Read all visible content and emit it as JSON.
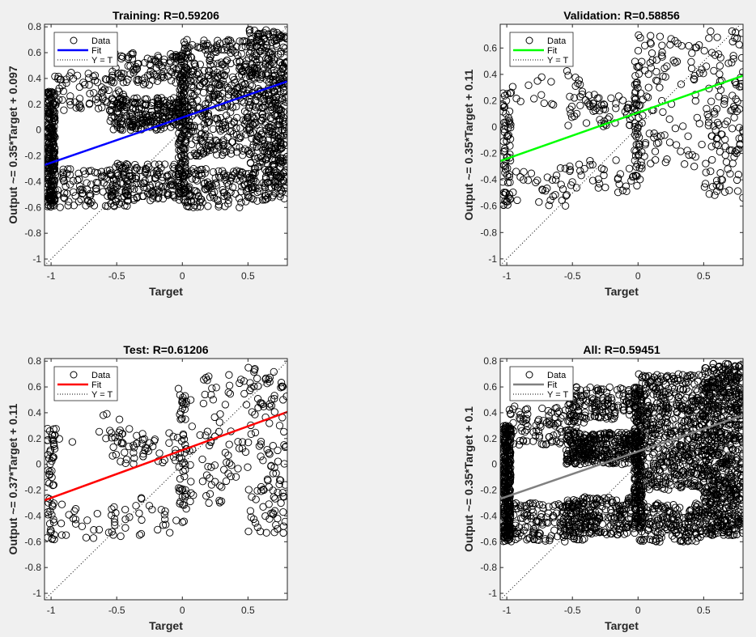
{
  "chart_data": [
    {
      "type": "scatter",
      "title": "Training: R=0.59206",
      "xlabel": "Target",
      "ylabel": "Output ~= 0.35*Target + 0.097",
      "xlim": [
        -1.05,
        0.8
      ],
      "ylim": [
        -1.05,
        0.82
      ],
      "xticks": [
        -1,
        -0.5,
        0,
        0.5
      ],
      "xtick_labels": [
        "-1",
        "-0.5",
        "0",
        "0.5"
      ],
      "yticks": [
        -1,
        -0.8,
        -0.6,
        -0.4,
        -0.2,
        0,
        0.2,
        0.4,
        0.6,
        0.8
      ],
      "ytick_labels": [
        "-1",
        "-0.8",
        "-0.6",
        "-0.4",
        "-0.2",
        "0",
        "0.2",
        "0.4",
        "0.6",
        "0.8"
      ],
      "fit": {
        "slope": 0.35,
        "intercept": 0.097,
        "color": "#0000ff"
      },
      "identity_line": true,
      "legend": {
        "position": "top-left",
        "entries": [
          "Data",
          "Fit",
          "Y = T"
        ]
      },
      "point_density": 1.0,
      "series": [
        {
          "name": "Data",
          "marker": "circle-open",
          "color": "#000000",
          "clusters": [
            {
              "x": [
                -1.03,
                -0.97
              ],
              "y": [
                -0.6,
                0.3
              ],
              "n": 260
            },
            {
              "x": [
                -0.98,
                -0.35
              ],
              "y": [
                -0.6,
                -0.3
              ],
              "n": 120
            },
            {
              "x": [
                -0.98,
                -0.4
              ],
              "y": [
                0.15,
                0.45
              ],
              "n": 90
            },
            {
              "x": [
                -0.55,
                -0.02
              ],
              "y": [
                0.0,
                0.25
              ],
              "n": 220
            },
            {
              "x": [
                -0.55,
                -0.02
              ],
              "y": [
                -0.55,
                -0.25
              ],
              "n": 140
            },
            {
              "x": [
                -0.55,
                -0.02
              ],
              "y": [
                0.35,
                0.6
              ],
              "n": 90
            },
            {
              "x": [
                -0.03,
                0.03
              ],
              "y": [
                -0.5,
                0.6
              ],
              "n": 160
            },
            {
              "x": [
                0.0,
                0.5
              ],
              "y": [
                -0.2,
                0.7
              ],
              "n": 380
            },
            {
              "x": [
                0.0,
                0.5
              ],
              "y": [
                -0.6,
                -0.3
              ],
              "n": 130
            },
            {
              "x": [
                0.5,
                0.8
              ],
              "y": [
                -0.55,
                0.78
              ],
              "n": 520
            }
          ]
        }
      ]
    },
    {
      "type": "scatter",
      "title": "Validation: R=0.58856",
      "xlabel": "Target",
      "ylabel": "Output ~= 0.35*Target + 0.11",
      "xlim": [
        -1.05,
        0.8
      ],
      "ylim": [
        -1.05,
        0.78
      ],
      "xticks": [
        -1,
        -0.5,
        0,
        0.5
      ],
      "xtick_labels": [
        "-1",
        "-0.5",
        "0",
        "0.5"
      ],
      "yticks": [
        -1,
        -0.8,
        -0.6,
        -0.4,
        -0.2,
        0,
        0.2,
        0.4,
        0.6
      ],
      "ytick_labels": [
        "-1",
        "-0.8",
        "-0.6",
        "-0.4",
        "-0.2",
        "0",
        "0.2",
        "0.4",
        "0.6"
      ],
      "fit": {
        "slope": 0.35,
        "intercept": 0.11,
        "color": "#00ff00"
      },
      "identity_line": true,
      "legend": {
        "position": "top-left",
        "entries": [
          "Data",
          "Fit",
          "Y = T"
        ]
      },
      "point_density": 0.55,
      "series": [
        {
          "name": "Data",
          "marker": "circle-open",
          "color": "#000000",
          "clusters": [
            {
              "x": [
                -1.03,
                -0.97
              ],
              "y": [
                -0.6,
                0.3
              ],
              "n": 120
            },
            {
              "x": [
                -0.98,
                -0.4
              ],
              "y": [
                -0.6,
                -0.3
              ],
              "n": 60
            },
            {
              "x": [
                -0.98,
                -0.4
              ],
              "y": [
                0.15,
                0.45
              ],
              "n": 40
            },
            {
              "x": [
                -0.55,
                -0.02
              ],
              "y": [
                0.0,
                0.25
              ],
              "n": 110
            },
            {
              "x": [
                -0.55,
                -0.02
              ],
              "y": [
                -0.5,
                -0.25
              ],
              "n": 60
            },
            {
              "x": [
                -0.03,
                0.03
              ],
              "y": [
                -0.45,
                0.5
              ],
              "n": 90
            },
            {
              "x": [
                0.0,
                0.5
              ],
              "y": [
                -0.3,
                0.7
              ],
              "n": 180
            },
            {
              "x": [
                0.5,
                0.8
              ],
              "y": [
                -0.55,
                0.75
              ],
              "n": 220
            }
          ]
        }
      ]
    },
    {
      "type": "scatter",
      "title": "Test: R=0.61206",
      "xlabel": "Target",
      "ylabel": "Output ~= 0.37*Target + 0.11",
      "xlim": [
        -1.05,
        0.8
      ],
      "ylim": [
        -1.05,
        0.82
      ],
      "xticks": [
        -1,
        -0.5,
        0,
        0.5
      ],
      "xtick_labels": [
        "-1",
        "-0.5",
        "0",
        "0.5"
      ],
      "yticks": [
        -1,
        -0.8,
        -0.6,
        -0.4,
        -0.2,
        0,
        0.2,
        0.4,
        0.6,
        0.8
      ],
      "ytick_labels": [
        "-1",
        "-0.8",
        "-0.6",
        "-0.4",
        "-0.2",
        "0",
        "0.2",
        "0.4",
        "0.6",
        "0.8"
      ],
      "fit": {
        "slope": 0.37,
        "intercept": 0.11,
        "color": "#ff0000"
      },
      "identity_line": true,
      "legend": {
        "position": "top-left",
        "entries": [
          "Data",
          "Fit",
          "Y = T"
        ]
      },
      "point_density": 0.5,
      "series": [
        {
          "name": "Data",
          "marker": "circle-open",
          "color": "#000000",
          "clusters": [
            {
              "x": [
                -1.03,
                -0.97
              ],
              "y": [
                -0.6,
                0.3
              ],
              "n": 110
            },
            {
              "x": [
                -0.98,
                -0.4
              ],
              "y": [
                -0.6,
                -0.3
              ],
              "n": 50
            },
            {
              "x": [
                -0.98,
                -0.4
              ],
              "y": [
                0.15,
                0.4
              ],
              "n": 30
            },
            {
              "x": [
                -0.55,
                -0.02
              ],
              "y": [
                0.0,
                0.25
              ],
              "n": 100
            },
            {
              "x": [
                -0.55,
                -0.02
              ],
              "y": [
                -0.55,
                -0.25
              ],
              "n": 50
            },
            {
              "x": [
                -0.03,
                0.03
              ],
              "y": [
                -0.45,
                0.6
              ],
              "n": 100
            },
            {
              "x": [
                0.0,
                0.5
              ],
              "y": [
                -0.3,
                0.7
              ],
              "n": 160
            },
            {
              "x": [
                0.5,
                0.8
              ],
              "y": [
                -0.55,
                0.75
              ],
              "n": 230
            }
          ]
        }
      ]
    },
    {
      "type": "scatter",
      "title": "All: R=0.59451",
      "xlabel": "Target",
      "ylabel": "Output ~= 0.35*Target + 0.1",
      "xlim": [
        -1.05,
        0.8
      ],
      "ylim": [
        -1.05,
        0.82
      ],
      "xticks": [
        -1,
        -0.5,
        0,
        0.5
      ],
      "xtick_labels": [
        "-1",
        "-0.5",
        "0",
        "0.5"
      ],
      "yticks": [
        -1,
        -0.8,
        -0.6,
        -0.4,
        -0.2,
        0,
        0.2,
        0.4,
        0.6,
        0.8
      ],
      "ytick_labels": [
        "-1",
        "-0.8",
        "-0.6",
        "-0.4",
        "-0.2",
        "0",
        "0.2",
        "0.4",
        "0.6",
        "0.8"
      ],
      "fit": {
        "slope": 0.35,
        "intercept": 0.1,
        "color": "#808080"
      },
      "identity_line": true,
      "legend": {
        "position": "top-left",
        "entries": [
          "Data",
          "Fit",
          "Y = T"
        ]
      },
      "point_density": 1.35,
      "series": [
        {
          "name": "Data",
          "marker": "circle-open",
          "color": "#000000",
          "clusters": [
            {
              "x": [
                -1.03,
                -0.97
              ],
              "y": [
                -0.6,
                0.3
              ],
              "n": 260
            },
            {
              "x": [
                -0.98,
                -0.35
              ],
              "y": [
                -0.6,
                -0.3
              ],
              "n": 130
            },
            {
              "x": [
                -0.98,
                -0.4
              ],
              "y": [
                0.15,
                0.45
              ],
              "n": 90
            },
            {
              "x": [
                -0.55,
                -0.02
              ],
              "y": [
                0.0,
                0.25
              ],
              "n": 230
            },
            {
              "x": [
                -0.55,
                -0.02
              ],
              "y": [
                -0.55,
                -0.25
              ],
              "n": 150
            },
            {
              "x": [
                -0.55,
                -0.02
              ],
              "y": [
                0.35,
                0.6
              ],
              "n": 100
            },
            {
              "x": [
                -0.03,
                0.03
              ],
              "y": [
                -0.5,
                0.6
              ],
              "n": 170
            },
            {
              "x": [
                0.0,
                0.5
              ],
              "y": [
                -0.2,
                0.7
              ],
              "n": 400
            },
            {
              "x": [
                0.0,
                0.5
              ],
              "y": [
                -0.6,
                -0.3
              ],
              "n": 140
            },
            {
              "x": [
                0.5,
                0.8
              ],
              "y": [
                -0.55,
                0.78
              ],
              "n": 540
            }
          ]
        }
      ]
    }
  ]
}
